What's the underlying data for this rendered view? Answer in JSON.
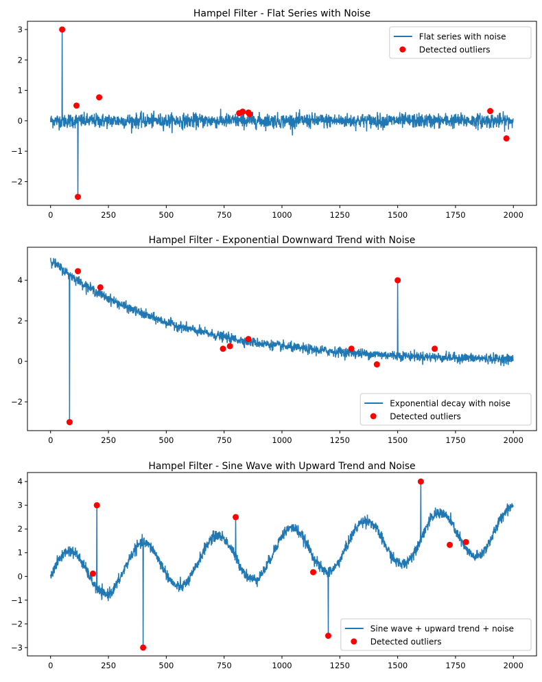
{
  "chart_data": [
    {
      "type": "line",
      "title": "Hampel Filter - Flat Series with Noise",
      "xlim": [
        -100,
        2100
      ],
      "ylim": [
        -2.78,
        3.27
      ],
      "xticks": [
        0,
        250,
        500,
        750,
        1000,
        1250,
        1500,
        1750,
        2000
      ],
      "yticks": [
        -2,
        -1,
        0,
        1,
        2,
        3
      ],
      "grid": false,
      "legend_position": "upper-right",
      "series": [
        {
          "name": "Flat series with noise",
          "kind": "line",
          "color": "#1f77b4",
          "x_range": [
            0,
            1999
          ],
          "baseline": "flat",
          "noise_amplitude": 0.2
        },
        {
          "name": "Detected outliers",
          "kind": "scatter",
          "color": "#ff0000",
          "points": [
            [
              50,
              3.0
            ],
            [
              112,
              0.5
            ],
            [
              118,
              -2.5
            ],
            [
              210,
              0.77
            ],
            [
              815,
              0.25
            ],
            [
              830,
              0.3
            ],
            [
              855,
              0.27
            ],
            [
              860,
              0.22
            ],
            [
              1900,
              0.32
            ],
            [
              1970,
              -0.58
            ]
          ]
        }
      ]
    },
    {
      "type": "line",
      "title": "Hampel Filter - Exponential Downward Trend with Noise",
      "xlim": [
        -100,
        2100
      ],
      "ylim": [
        -3.42,
        5.63
      ],
      "xticks": [
        0,
        250,
        500,
        750,
        1000,
        1250,
        1500,
        1750,
        2000
      ],
      "yticks": [
        -2,
        0,
        2,
        4
      ],
      "grid": false,
      "legend_position": "lower-right",
      "series": [
        {
          "name": "Exponential decay with noise",
          "kind": "line",
          "color": "#1f77b4",
          "x_range": [
            0,
            1999
          ],
          "baseline": "exponential decay from 5",
          "noise_amplitude": 0.2
        },
        {
          "name": "Detected outliers",
          "kind": "scatter",
          "color": "#ff0000",
          "points": [
            [
              82,
              -3.0
            ],
            [
              118,
              4.45
            ],
            [
              215,
              3.65
            ],
            [
              745,
              0.62
            ],
            [
              775,
              0.75
            ],
            [
              855,
              1.1
            ],
            [
              1300,
              0.62
            ],
            [
              1410,
              -0.15
            ],
            [
              1500,
              4.0
            ],
            [
              1660,
              0.62
            ]
          ]
        }
      ]
    },
    {
      "type": "line",
      "title": "Hampel Filter - Sine Wave with Upward Trend and Noise",
      "xlim": [
        -100,
        2100
      ],
      "ylim": [
        -3.35,
        4.38
      ],
      "xticks": [
        0,
        250,
        500,
        750,
        1000,
        1250,
        1500,
        1750,
        2000
      ],
      "yticks": [
        -3,
        -2,
        -1,
        0,
        1,
        2,
        3,
        4
      ],
      "grid": false,
      "legend_position": "lower-right",
      "series": [
        {
          "name": "Sine wave + upward trend + noise",
          "kind": "line",
          "color": "#1f77b4",
          "x_range": [
            0,
            1999
          ],
          "baseline": "sine wave plus upward trend",
          "noise_amplitude": 0.2
        },
        {
          "name": "Detected outliers",
          "kind": "scatter",
          "color": "#ff0000",
          "points": [
            [
              183,
              0.12
            ],
            [
              200,
              3.0
            ],
            [
              400,
              -3.0
            ],
            [
              800,
              2.5
            ],
            [
              1135,
              0.18
            ],
            [
              1200,
              -2.5
            ],
            [
              1600,
              4.0
            ],
            [
              1725,
              1.33
            ],
            [
              1795,
              1.45
            ]
          ]
        }
      ]
    }
  ]
}
